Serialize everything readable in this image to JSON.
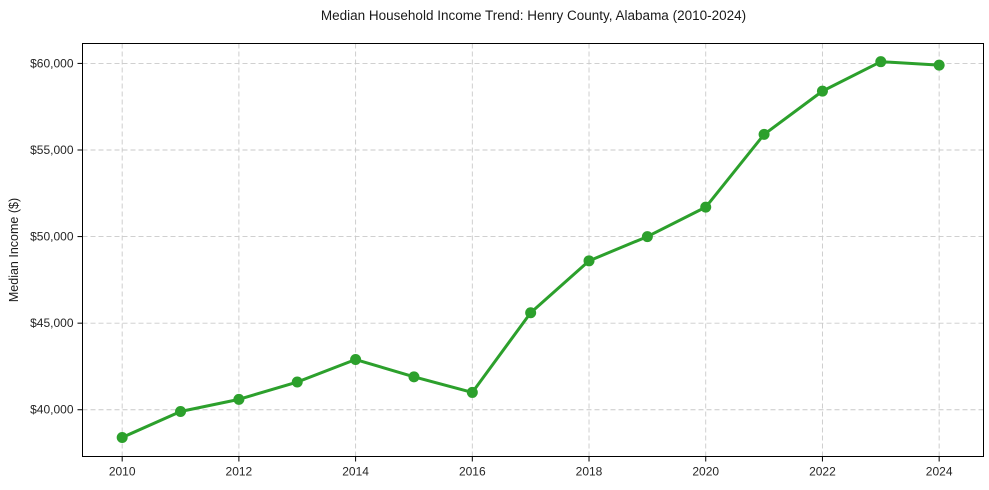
{
  "chart_data": {
    "type": "line",
    "title": "Median Household Income Trend: Henry County, Alabama (2010-2024)",
    "xlabel": "",
    "ylabel": "Median Income ($)",
    "x": [
      2010,
      2011,
      2012,
      2013,
      2014,
      2015,
      2016,
      2017,
      2018,
      2019,
      2020,
      2021,
      2022,
      2023,
      2024
    ],
    "y": [
      38400,
      39900,
      40600,
      41600,
      42900,
      41900,
      41000,
      45600,
      48600,
      50000,
      51700,
      55900,
      58400,
      60100,
      59900
    ],
    "x_ticks": [
      2010,
      2012,
      2014,
      2016,
      2018,
      2020,
      2022,
      2024
    ],
    "x_tick_labels": [
      "2010",
      "2012",
      "2014",
      "2016",
      "2018",
      "2020",
      "2022",
      "2024"
    ],
    "y_ticks": [
      40000,
      45000,
      50000,
      55000,
      60000
    ],
    "y_tick_labels": [
      "$40,000",
      "$45,000",
      "$50,000",
      "$55,000",
      "$60,000"
    ],
    "xlim": [
      2009.32,
      2024.76
    ],
    "ylim": [
      37300,
      61150
    ],
    "grid": true,
    "grid_style": "dashed",
    "legend_position": "none",
    "series_color": "#2ca02c",
    "grid_color": "#c9c9c9",
    "spine_color": "#000000",
    "marker": "circle"
  }
}
